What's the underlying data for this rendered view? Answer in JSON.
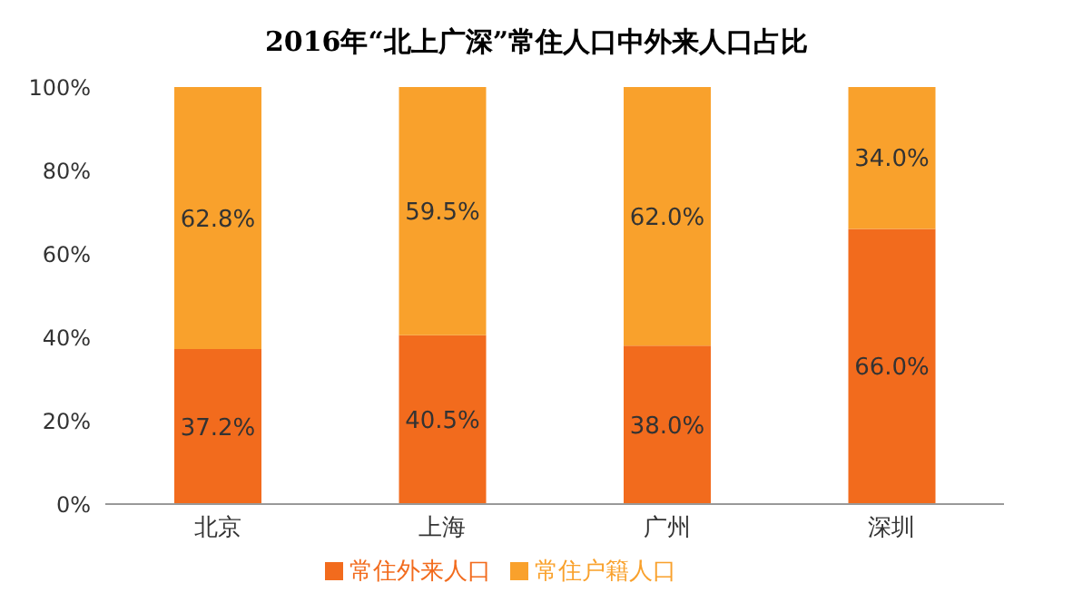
{
  "chart_data": {
    "type": "bar",
    "title": "2016年“北上广深”常住人口中外来人口占比",
    "categories": [
      "北京",
      "上海",
      "广州",
      "深圳"
    ],
    "stacked": true,
    "series": [
      {
        "name": "常住外来人口",
        "color": "#f26b1d",
        "values": [
          37.2,
          40.5,
          38.0,
          66.0
        ],
        "value_labels": [
          "37.2%",
          "40.5%",
          "38.0%",
          "66.0%"
        ]
      },
      {
        "name": "常住户籍人口",
        "color": "#f9a12c",
        "values": [
          62.8,
          59.5,
          62.0,
          34.0
        ],
        "value_labels": [
          "62.8%",
          "59.5%",
          "62.0%",
          "34.0%"
        ]
      }
    ],
    "ylim": [
      0,
      100
    ],
    "yticks": [
      {
        "value": 0,
        "label": "0%"
      },
      {
        "value": 20,
        "label": "20%"
      },
      {
        "value": 40,
        "label": "40%"
      },
      {
        "value": 60,
        "label": "60%"
      },
      {
        "value": 80,
        "label": "80%"
      },
      {
        "value": 100,
        "label": "100%"
      }
    ],
    "legend": "bottom",
    "grid": false
  }
}
